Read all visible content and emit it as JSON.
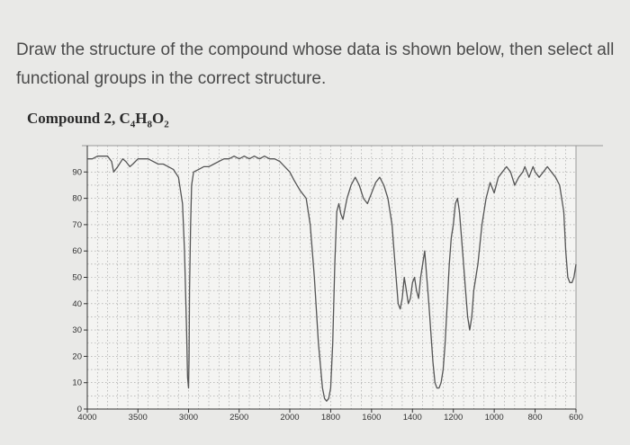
{
  "question": {
    "text": "Draw the structure of the compound whose data is shown below, then select all functional groups in the correct structure."
  },
  "compound": {
    "label": "Compound 2, ",
    "formula_parts": [
      {
        "t": "C",
        "sub": false
      },
      {
        "t": "4",
        "sub": true
      },
      {
        "t": "H",
        "sub": false
      },
      {
        "t": "8",
        "sub": true
      },
      {
        "t": "O",
        "sub": false
      },
      {
        "t": "2",
        "sub": true
      }
    ]
  },
  "chart_data": {
    "type": "line",
    "title": "",
    "xlabel": "",
    "ylabel": "",
    "x_range": [
      4000,
      600
    ],
    "y_range": [
      0,
      100
    ],
    "x_ticks": [
      4000,
      3500,
      3000,
      2500,
      2000,
      1800,
      1600,
      1400,
      1200,
      1000,
      800,
      600
    ],
    "x_tick_labels": [
      "4000",
      "3500",
      "3000",
      "2500",
      "2000",
      "1800",
      "1600",
      "1400",
      "1200",
      "1000",
      "800",
      "600"
    ],
    "y_ticks": [
      0,
      10,
      20,
      30,
      40,
      50,
      60,
      70,
      80,
      90
    ],
    "y_tick_labels": [
      "0",
      "10",
      "20",
      "30",
      "40",
      "50",
      "60",
      "70",
      "80",
      "90"
    ],
    "grid": true,
    "series": [
      {
        "x": [
          4000,
          3950,
          3900,
          3850,
          3800,
          3760,
          3740,
          3700,
          3650,
          3620,
          3580,
          3550,
          3500,
          3450,
          3400,
          3350,
          3300,
          3250,
          3200,
          3150,
          3100,
          3060,
          3040,
          3020,
          3010,
          3000,
          2995,
          2990,
          2980,
          2970,
          2950,
          2900,
          2850,
          2800,
          2750,
          2700,
          2650,
          2600,
          2550,
          2500,
          2450,
          2400,
          2350,
          2300,
          2250,
          2200,
          2150,
          2100,
          2050,
          2000,
          1980,
          1950,
          1920,
          1900,
          1880,
          1860,
          1840,
          1830,
          1820,
          1810,
          1800,
          1790,
          1780,
          1770,
          1760,
          1750,
          1740,
          1730,
          1720,
          1700,
          1680,
          1660,
          1640,
          1620,
          1600,
          1580,
          1560,
          1540,
          1520,
          1500,
          1490,
          1480,
          1470,
          1460,
          1450,
          1440,
          1430,
          1420,
          1410,
          1400,
          1390,
          1380,
          1370,
          1360,
          1350,
          1340,
          1320,
          1300,
          1290,
          1280,
          1270,
          1260,
          1250,
          1240,
          1230,
          1220,
          1210,
          1200,
          1190,
          1180,
          1170,
          1160,
          1150,
          1140,
          1130,
          1120,
          1110,
          1100,
          1080,
          1060,
          1040,
          1020,
          1000,
          980,
          960,
          940,
          920,
          900,
          880,
          860,
          850,
          840,
          830,
          820,
          810,
          800,
          780,
          760,
          740,
          720,
          700,
          680,
          660,
          650,
          640,
          630,
          620,
          610,
          600
        ],
        "y": [
          95,
          95,
          96,
          96,
          96,
          94,
          90,
          92,
          95,
          94,
          92,
          93,
          95,
          95,
          95,
          94,
          93,
          93,
          92,
          91,
          88,
          78,
          60,
          30,
          12,
          8,
          20,
          45,
          70,
          85,
          90,
          91,
          92,
          92,
          93,
          94,
          95,
          95,
          96,
          95,
          96,
          95,
          96,
          95,
          96,
          95,
          95,
          94,
          92,
          90,
          87,
          83,
          80,
          70,
          50,
          25,
          8,
          4,
          3,
          4,
          8,
          25,
          55,
          75,
          78,
          74,
          72,
          76,
          80,
          85,
          88,
          85,
          80,
          78,
          82,
          86,
          88,
          85,
          80,
          70,
          60,
          50,
          40,
          38,
          42,
          50,
          45,
          40,
          42,
          48,
          50,
          45,
          42,
          50,
          55,
          60,
          40,
          18,
          10,
          8,
          8,
          10,
          15,
          25,
          40,
          55,
          65,
          70,
          78,
          80,
          75,
          65,
          55,
          45,
          35,
          30,
          35,
          45,
          55,
          70,
          80,
          86,
          82,
          88,
          90,
          92,
          90,
          85,
          88,
          90,
          92,
          90,
          88,
          90,
          92,
          90,
          88,
          90,
          92,
          90,
          88,
          85,
          75,
          60,
          50,
          48,
          48,
          50,
          55
        ]
      }
    ]
  }
}
